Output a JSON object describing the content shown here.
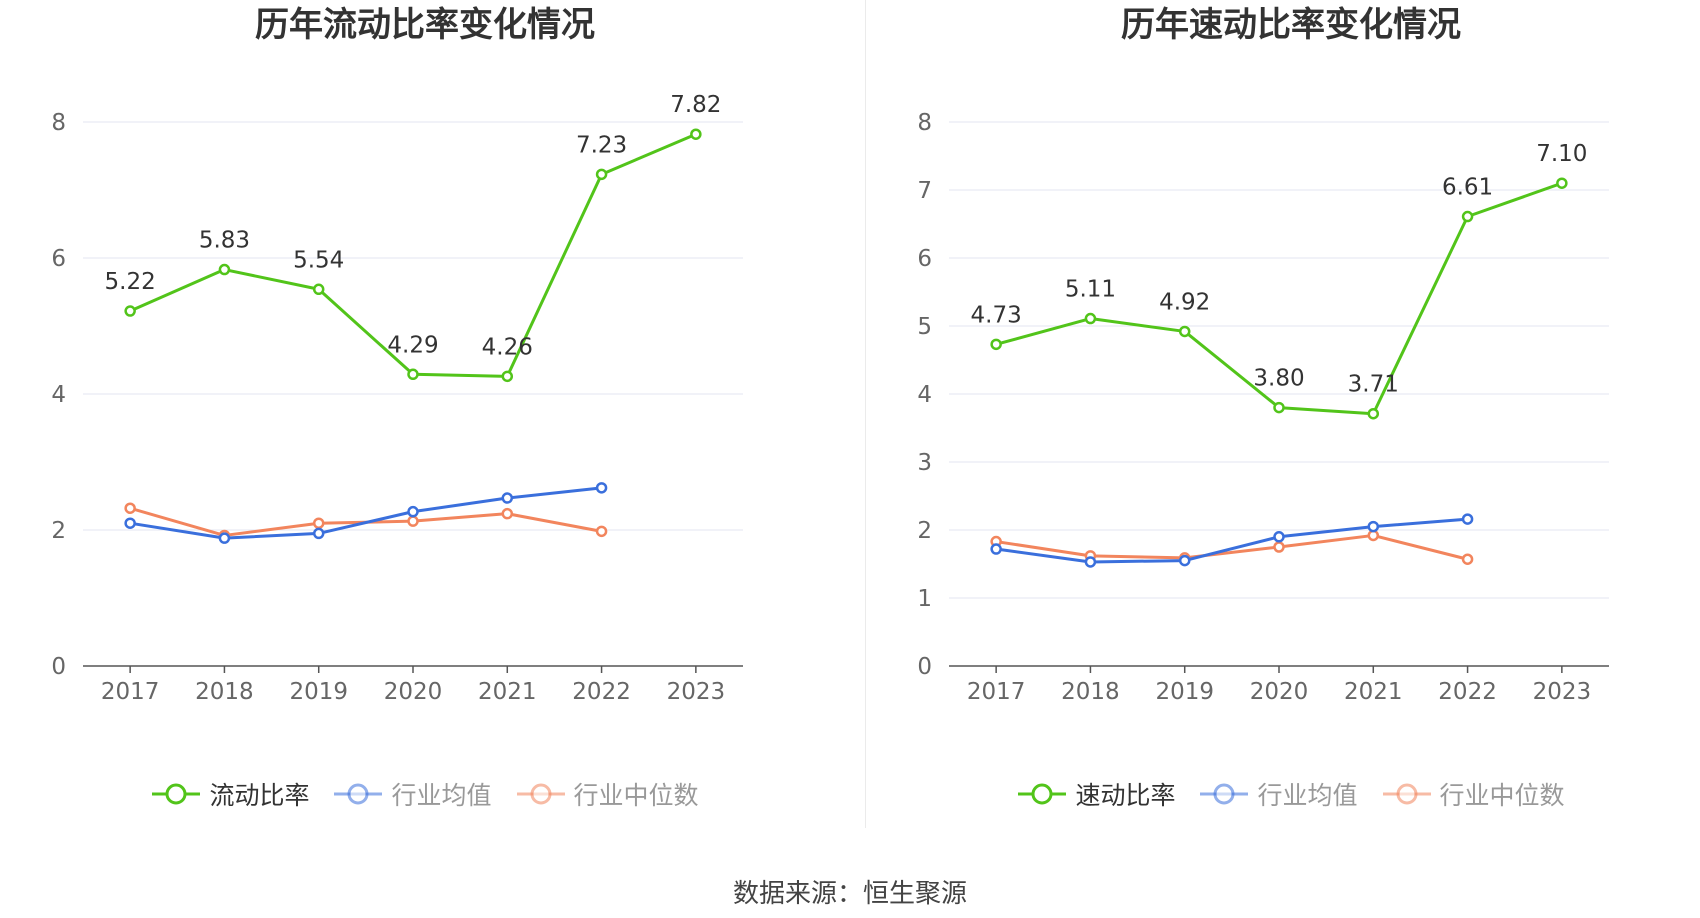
{
  "footer": {
    "source": "数据来源：恒生聚源"
  },
  "chart_data": [
    {
      "type": "line",
      "title": "历年流动比率变化情况",
      "xlabel": "",
      "ylabel": "",
      "categories": [
        "2017",
        "2018",
        "2019",
        "2020",
        "2021",
        "2022",
        "2023"
      ],
      "ylim": [
        0,
        8
      ],
      "yticks": [
        0,
        2,
        4,
        6,
        8
      ],
      "grid": true,
      "legend_position": "bottom",
      "series": [
        {
          "name": "流动比率",
          "color": "#52c41a",
          "values": [
            5.22,
            5.83,
            5.54,
            4.29,
            4.26,
            7.23,
            7.82
          ],
          "labels": [
            "5.22",
            "5.83",
            "5.54",
            "4.29",
            "4.26",
            "7.23",
            "7.82"
          ]
        },
        {
          "name": "行业均值",
          "color": "#3a6fdc",
          "values": [
            2.1,
            1.88,
            1.95,
            2.27,
            2.47,
            2.62,
            null
          ]
        },
        {
          "name": "行业中位数",
          "color": "#f2855d",
          "values": [
            2.32,
            1.92,
            2.1,
            2.13,
            2.24,
            1.98,
            null
          ]
        }
      ]
    },
    {
      "type": "line",
      "title": "历年速动比率变化情况",
      "xlabel": "",
      "ylabel": "",
      "categories": [
        "2017",
        "2018",
        "2019",
        "2020",
        "2021",
        "2022",
        "2023"
      ],
      "ylim": [
        0,
        8
      ],
      "yticks": [
        0,
        1,
        2,
        3,
        4,
        5,
        6,
        7,
        8
      ],
      "grid": true,
      "legend_position": "bottom",
      "series": [
        {
          "name": "速动比率",
          "color": "#52c41a",
          "values": [
            4.73,
            5.11,
            4.92,
            3.8,
            3.71,
            6.61,
            7.1
          ],
          "labels": [
            "4.73",
            "5.11",
            "4.92",
            "3.80",
            "3.71",
            "6.61",
            "7.10"
          ]
        },
        {
          "name": "行业均值",
          "color": "#3a6fdc",
          "values": [
            1.72,
            1.53,
            1.55,
            1.9,
            2.05,
            2.16,
            null
          ]
        },
        {
          "name": "行业中位数",
          "color": "#f2855d",
          "values": [
            1.83,
            1.62,
            1.59,
            1.75,
            1.92,
            1.57,
            null
          ]
        }
      ]
    }
  ]
}
